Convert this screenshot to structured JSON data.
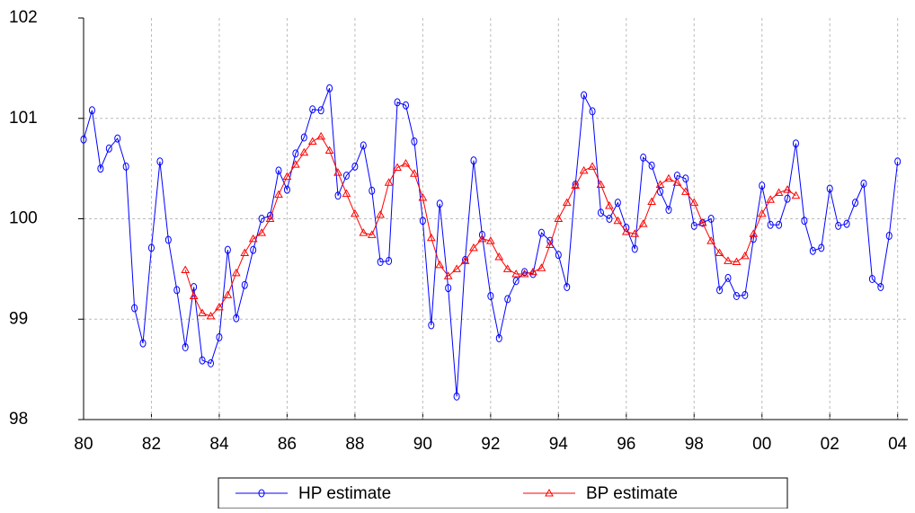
{
  "chart_data": {
    "type": "line",
    "x": [
      1980,
      1980.25,
      1980.5,
      1980.75,
      1981,
      1981.25,
      1981.5,
      1981.75,
      1982,
      1982.25,
      1982.5,
      1982.75,
      1983,
      1983.25,
      1983.5,
      1983.75,
      1984,
      1984.25,
      1984.5,
      1984.75,
      1985,
      1985.25,
      1985.5,
      1985.75,
      1986,
      1986.25,
      1986.5,
      1986.75,
      1987,
      1987.25,
      1987.5,
      1987.75,
      1988,
      1988.25,
      1988.5,
      1988.75,
      1989,
      1989.25,
      1989.5,
      1989.75,
      1990,
      1990.25,
      1990.5,
      1990.75,
      1991,
      1991.25,
      1991.5,
      1991.75,
      1992,
      1992.25,
      1992.5,
      1992.75,
      1993,
      1993.25,
      1993.5,
      1993.75,
      1994,
      1994.25,
      1994.5,
      1994.75,
      1995,
      1995.25,
      1995.5,
      1995.75,
      1996,
      1996.25,
      1996.5,
      1996.75,
      1997,
      1997.25,
      1997.5,
      1997.75,
      1998,
      1998.25,
      1998.5,
      1998.75,
      1999,
      1999.25,
      1999.5,
      1999.75,
      2000,
      2000.25,
      2000.5,
      2000.75,
      2001,
      2001.25,
      2001.5,
      2001.75,
      2002,
      2002.25,
      2002.5,
      2002.75,
      2003,
      2003.25,
      2003.5,
      2003.75,
      2004
    ],
    "series": [
      {
        "name": "HP estimate",
        "color": "#0000ff",
        "marker": "circle",
        "values": [
          100.79,
          101.08,
          100.5,
          100.7,
          100.8,
          100.52,
          99.11,
          98.76,
          99.71,
          100.57,
          99.79,
          99.29,
          98.72,
          99.32,
          98.59,
          98.56,
          98.82,
          99.69,
          99.01,
          99.34,
          99.69,
          100.0,
          100.03,
          100.48,
          100.29,
          100.65,
          100.81,
          101.09,
          101.08,
          101.3,
          100.23,
          100.43,
          100.52,
          100.73,
          100.28,
          99.57,
          99.58,
          101.16,
          101.13,
          100.77,
          99.98,
          98.94,
          100.15,
          99.31,
          98.23,
          99.59,
          100.58,
          99.84,
          99.23,
          98.81,
          99.2,
          99.38,
          99.47,
          99.45,
          99.86,
          99.78,
          99.64,
          99.32,
          100.34,
          101.23,
          101.07,
          100.06,
          100.0,
          100.16,
          99.91,
          99.7,
          100.61,
          100.53,
          100.27,
          100.09,
          100.43,
          100.4,
          99.93,
          99.96,
          100.0,
          99.29,
          99.41,
          99.23,
          99.24,
          99.8,
          100.33,
          99.94,
          99.94,
          100.2,
          100.75,
          99.98,
          99.68,
          99.71,
          100.3,
          99.93,
          99.95,
          100.16,
          100.35,
          99.4,
          99.32,
          99.83,
          100.57
        ]
      },
      {
        "name": "BP estimate",
        "color": "#ff0000",
        "marker": "triangle",
        "values": [
          null,
          null,
          null,
          null,
          null,
          null,
          null,
          null,
          null,
          null,
          null,
          null,
          99.49,
          99.23,
          99.06,
          99.03,
          99.12,
          99.24,
          99.46,
          99.66,
          99.8,
          99.86,
          100.0,
          100.24,
          100.42,
          100.54,
          100.66,
          100.77,
          100.82,
          100.68,
          100.46,
          100.25,
          100.05,
          99.86,
          99.84,
          100.04,
          100.36,
          100.51,
          100.55,
          100.45,
          100.21,
          99.81,
          99.54,
          99.43,
          99.5,
          99.58,
          99.71,
          99.8,
          99.78,
          99.62,
          99.5,
          99.45,
          99.45,
          99.47,
          99.51,
          99.74,
          100.0,
          100.16,
          100.33,
          100.48,
          100.52,
          100.34,
          100.13,
          99.98,
          99.87,
          99.85,
          99.95,
          100.17,
          100.34,
          100.4,
          100.36,
          100.27,
          100.16,
          99.96,
          99.78,
          99.66,
          99.58,
          99.57,
          99.63,
          99.85,
          100.05,
          100.19,
          100.26,
          100.29,
          100.23,
          null,
          null,
          null,
          null,
          null,
          null,
          null,
          null,
          null,
          null,
          null,
          null
        ]
      }
    ],
    "xlim": [
      1980,
      2004.3
    ],
    "xticks": [
      {
        "value": 1980,
        "label": "80"
      },
      {
        "value": 1982,
        "label": "82"
      },
      {
        "value": 1984,
        "label": "84"
      },
      {
        "value": 1986,
        "label": "86"
      },
      {
        "value": 1988,
        "label": "88"
      },
      {
        "value": 1990,
        "label": "90"
      },
      {
        "value": 1992,
        "label": "92"
      },
      {
        "value": 1994,
        "label": "94"
      },
      {
        "value": 1996,
        "label": "96"
      },
      {
        "value": 1998,
        "label": "98"
      },
      {
        "value": 2000,
        "label": "00"
      },
      {
        "value": 2002,
        "label": "02"
      },
      {
        "value": 2004,
        "label": "04"
      }
    ],
    "ylim": [
      98,
      102
    ],
    "yticks": [
      98,
      99,
      100,
      101,
      102
    ],
    "grid": true,
    "legend": "bottom"
  }
}
